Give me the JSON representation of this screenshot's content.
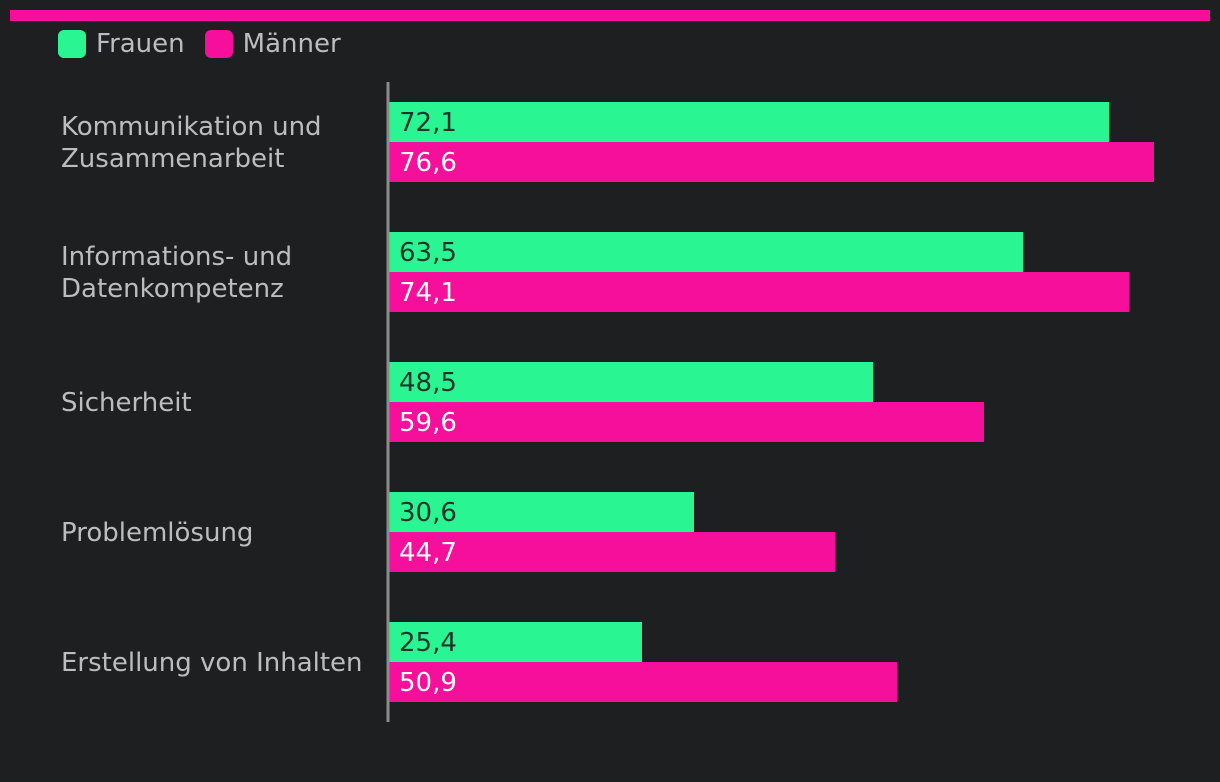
{
  "colors": {
    "frauen": "#2af593",
    "maenner": "#f50f9a",
    "axis": "#8c8c8c",
    "label_frauen": "#1f3329",
    "label_maenner": "#ffffff"
  },
  "legend": {
    "frauen": "Frauen",
    "maenner": "Männer"
  },
  "chart_data": {
    "type": "bar",
    "orientation": "horizontal",
    "categories": [
      [
        "Kommunikation und",
        "Zusammenarbeit"
      ],
      [
        "Informations- und",
        "Datenkompetenz"
      ],
      [
        "Sicherheit"
      ],
      [
        "Problemlösung"
      ],
      [
        "Erstellung von Inhalten"
      ]
    ],
    "series": [
      {
        "name": "Frauen",
        "values": [
          72.1,
          63.5,
          48.5,
          30.6,
          25.4
        ],
        "labels": [
          "72,1",
          "63,5",
          "48,5",
          "30,6",
          "25,4"
        ]
      },
      {
        "name": "Männer",
        "values": [
          76.6,
          74.1,
          59.6,
          44.7,
          50.9
        ],
        "labels": [
          "76,6",
          "74,1",
          "59,6",
          "44,7",
          "50,9"
        ]
      }
    ],
    "xlim": [
      0,
      80
    ],
    "grid": false,
    "legend_position": "top-left"
  }
}
